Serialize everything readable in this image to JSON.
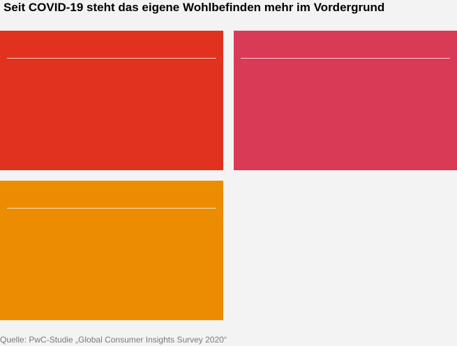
{
  "title": "Seit COVID-19 steht das eigene Wohlbefinden mehr im Vordergrund",
  "cards": [
    {
      "color": "#e0321e"
    },
    {
      "color": "#d93a56"
    },
    {
      "color": "#ec8c00"
    }
  ],
  "source": "Quelle: PwC-Studie „Global Consumer Insights Survey 2020“"
}
